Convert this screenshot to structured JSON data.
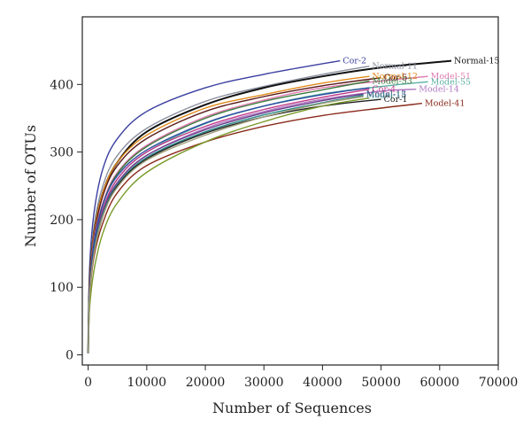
{
  "chart_data": {
    "type": "line",
    "title": "",
    "xlabel": "Number of Sequences",
    "ylabel": "Number of OTUs",
    "xlim": [
      -1000,
      70000
    ],
    "ylim": [
      -15,
      500
    ],
    "x_ticks": [
      0,
      10000,
      20000,
      30000,
      40000,
      50000,
      60000,
      70000
    ],
    "y_ticks": [
      0,
      100,
      200,
      300,
      400
    ],
    "x_tick_labels": [
      "0",
      "10000",
      "20000",
      "30000",
      "40000",
      "50000",
      "60000",
      "70000"
    ],
    "y_tick_labels": [
      "0",
      "100",
      "200",
      "300",
      "400"
    ],
    "grid": false,
    "legend": "inline labels at curve ends",
    "series": [
      {
        "name": "Cor-2",
        "color": "#3a3fa0",
        "x": [
          0,
          250,
          1000,
          2500,
          5000,
          10000,
          20000,
          30000,
          43000
        ],
        "y": [
          2,
          130,
          210,
          275,
          320,
          360,
          395,
          415,
          435
        ]
      },
      {
        "name": "Normal-11",
        "color": "#8a8fa0",
        "x": [
          0,
          250,
          1000,
          2500,
          5000,
          10000,
          20000,
          30000,
          40000,
          48000
        ],
        "y": [
          2,
          115,
          190,
          250,
          295,
          335,
          375,
          397,
          415,
          427
        ]
      },
      {
        "name": "Normal-15",
        "color": "#111111",
        "x": [
          0,
          250,
          1000,
          2500,
          5000,
          10000,
          20000,
          30000,
          40000,
          50000,
          62000
        ],
        "y": [
          2,
          110,
          180,
          240,
          285,
          330,
          370,
          395,
          412,
          425,
          435
        ]
      },
      {
        "name": "Normal-12",
        "color": "#e08a1a",
        "x": [
          0,
          250,
          1000,
          2500,
          5000,
          10000,
          20000,
          30000,
          40000,
          48000
        ],
        "y": [
          2,
          108,
          180,
          240,
          285,
          325,
          365,
          385,
          402,
          412
        ]
      },
      {
        "name": "Cor-5",
        "color": "#5a1a1a",
        "x": [
          0,
          250,
          1000,
          2500,
          5000,
          10000,
          20000,
          30000,
          40000,
          50000
        ],
        "y": [
          2,
          105,
          175,
          235,
          280,
          320,
          360,
          382,
          398,
          410
        ]
      },
      {
        "name": "Model-51",
        "color": "#e07ab0",
        "x": [
          0,
          250,
          1000,
          2500,
          5000,
          10000,
          20000,
          30000,
          40000,
          50000,
          58000
        ],
        "y": [
          2,
          100,
          170,
          225,
          270,
          310,
          352,
          377,
          395,
          405,
          412
        ]
      },
      {
        "name": "Model-53",
        "color": "#3a7a3a",
        "x": [
          0,
          250,
          1000,
          2500,
          5000,
          10000,
          20000,
          30000,
          40000,
          48000
        ],
        "y": [
          2,
          100,
          165,
          222,
          268,
          308,
          350,
          375,
          392,
          405
        ]
      },
      {
        "name": "Model-55",
        "color": "#5ab0a0",
        "x": [
          0,
          250,
          1000,
          2500,
          5000,
          10000,
          20000,
          30000,
          40000,
          50000,
          58000
        ],
        "y": [
          2,
          95,
          160,
          215,
          260,
          300,
          342,
          368,
          386,
          397,
          404
        ]
      },
      {
        "name": "Cor-4",
        "color": "#c03a8a",
        "x": [
          0,
          250,
          1000,
          2500,
          5000,
          10000,
          20000,
          30000,
          40000,
          48000
        ],
        "y": [
          2,
          98,
          160,
          215,
          260,
          300,
          338,
          363,
          381,
          393
        ]
      },
      {
        "name": "Model-14",
        "color": "#b07ac0",
        "x": [
          0,
          250,
          1000,
          2500,
          5000,
          10000,
          20000,
          30000,
          40000,
          50000,
          56000
        ],
        "y": [
          2,
          92,
          155,
          210,
          255,
          295,
          335,
          360,
          378,
          390,
          393
        ]
      },
      {
        "name": "Model-13",
        "color": "#6a3a8a",
        "x": [
          0,
          250,
          1000,
          2500,
          5000,
          10000,
          20000,
          30000,
          40000,
          47000
        ],
        "y": [
          2,
          95,
          158,
          212,
          255,
          295,
          333,
          358,
          376,
          386
        ]
      },
      {
        "name": "Model-15",
        "color": "#2a8a8a",
        "x": [
          0,
          250,
          1000,
          2500,
          5000,
          10000,
          20000,
          30000,
          40000,
          47000
        ],
        "y": [
          2,
          93,
          155,
          208,
          252,
          292,
          330,
          355,
          373,
          384
        ]
      },
      {
        "name": "Cor-1",
        "color": "#222222",
        "x": [
          0,
          250,
          1000,
          2500,
          5000,
          10000,
          20000,
          30000,
          40000,
          50000
        ],
        "y": [
          2,
          90,
          150,
          205,
          250,
          290,
          328,
          352,
          368,
          378
        ]
      },
      {
        "name": "Model-41",
        "color": "#8a2a1a",
        "x": [
          0,
          250,
          1000,
          2500,
          5000,
          10000,
          20000,
          30000,
          40000,
          50000,
          57000
        ],
        "y": [
          2,
          85,
          145,
          195,
          240,
          280,
          315,
          338,
          354,
          365,
          372
        ]
      },
      {
        "name": "",
        "color": "#7a9a2a",
        "x": [
          0,
          250,
          1000,
          2500,
          5000,
          10000,
          20000,
          30000,
          40000,
          48000
        ],
        "y": [
          2,
          70,
          125,
          180,
          225,
          270,
          315,
          345,
          368,
          380
        ]
      },
      {
        "name": "",
        "color": "#2a4aa0",
        "x": [
          0,
          250,
          1000,
          2500,
          5000,
          10000,
          20000,
          30000,
          40000,
          48000
        ],
        "y": [
          2,
          95,
          165,
          222,
          265,
          303,
          343,
          368,
          385,
          395
        ]
      },
      {
        "name": "",
        "color": "#a0a07a",
        "x": [
          0,
          250,
          1000,
          2500,
          5000,
          10000,
          20000,
          30000,
          40000,
          47000
        ],
        "y": [
          2,
          90,
          150,
          205,
          248,
          288,
          325,
          352,
          372,
          382
        ]
      }
    ]
  }
}
